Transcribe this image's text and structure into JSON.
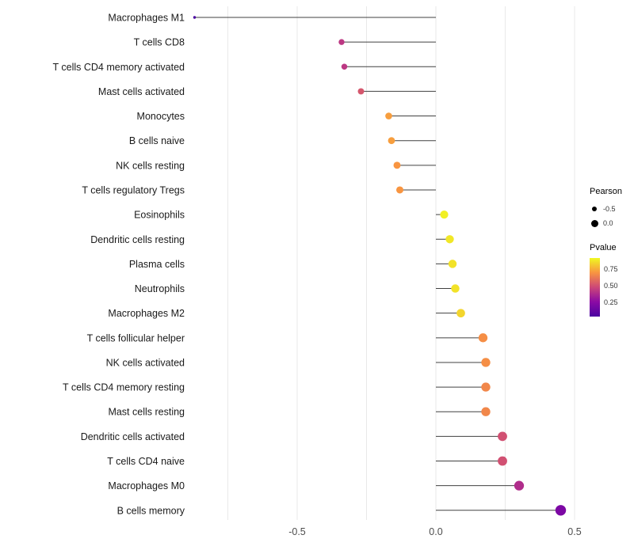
{
  "chart_data": {
    "type": "lollipop",
    "title": "",
    "xlabel": "",
    "ylabel": "",
    "xlim": [
      -0.9,
      0.6
    ],
    "x_ticks": [
      -0.5,
      0.0,
      0.5
    ],
    "x_tick_labels": [
      "-0.5",
      "0.0",
      "0.5"
    ],
    "gridlines": [
      -0.75,
      -0.5,
      -0.25,
      0.0,
      0.25,
      0.5
    ],
    "points": [
      {
        "label": "Macrophages M1",
        "pearson": -0.87,
        "pvalue": 0.02
      },
      {
        "label": "T cells CD8",
        "pearson": -0.34,
        "pvalue": 0.42
      },
      {
        "label": "T cells CD4 memory activated",
        "pearson": -0.33,
        "pvalue": 0.42
      },
      {
        "label": "Mast cells activated",
        "pearson": -0.27,
        "pvalue": 0.52
      },
      {
        "label": "Monocytes",
        "pearson": -0.17,
        "pvalue": 0.72
      },
      {
        "label": "B cells naive",
        "pearson": -0.16,
        "pvalue": 0.72
      },
      {
        "label": "NK cells resting",
        "pearson": -0.14,
        "pvalue": 0.7
      },
      {
        "label": "T cells regulatory  Tregs",
        "pearson": -0.13,
        "pvalue": 0.7
      },
      {
        "label": "Eosinophils",
        "pearson": 0.03,
        "pvalue": 0.9
      },
      {
        "label": "Dendritic cells resting",
        "pearson": 0.05,
        "pvalue": 0.88
      },
      {
        "label": "Plasma cells",
        "pearson": 0.06,
        "pvalue": 0.87
      },
      {
        "label": "Neutrophils",
        "pearson": 0.07,
        "pvalue": 0.87
      },
      {
        "label": "Macrophages M2",
        "pearson": 0.09,
        "pvalue": 0.84
      },
      {
        "label": "T cells follicular helper",
        "pearson": 0.17,
        "pvalue": 0.68
      },
      {
        "label": "NK cells activated",
        "pearson": 0.18,
        "pvalue": 0.68
      },
      {
        "label": "T cells CD4 memory resting",
        "pearson": 0.18,
        "pvalue": 0.66
      },
      {
        "label": "Mast cells resting",
        "pearson": 0.18,
        "pvalue": 0.66
      },
      {
        "label": "Dendritic cells activated",
        "pearson": 0.24,
        "pvalue": 0.5
      },
      {
        "label": "T cells CD4 naive",
        "pearson": 0.24,
        "pvalue": 0.5
      },
      {
        "label": "Macrophages M0",
        "pearson": 0.3,
        "pvalue": 0.38
      },
      {
        "label": "B cells memory",
        "pearson": 0.45,
        "pvalue": 0.2
      }
    ],
    "legend": {
      "size": {
        "title": "Pearson",
        "entries": [
          {
            "label": "-0.5",
            "value": -0.5
          },
          {
            "label": "0.0",
            "value": 0.0
          }
        ]
      },
      "color": {
        "title": "Pvalue",
        "ticks": [
          "0.75",
          "0.50",
          "0.25"
        ],
        "tick_values": [
          0.75,
          0.5,
          0.25
        ],
        "range": [
          0.03,
          0.92
        ]
      }
    },
    "colors": {
      "stem": "#404040",
      "grid": "#e9e9e9",
      "label": "#1a1a1a",
      "tick_label": "#4d4d4d",
      "plasma_stops": [
        "#4b03a1",
        "#8b0aa5",
        "#cc4778",
        "#f89441",
        "#f0f921"
      ]
    }
  }
}
